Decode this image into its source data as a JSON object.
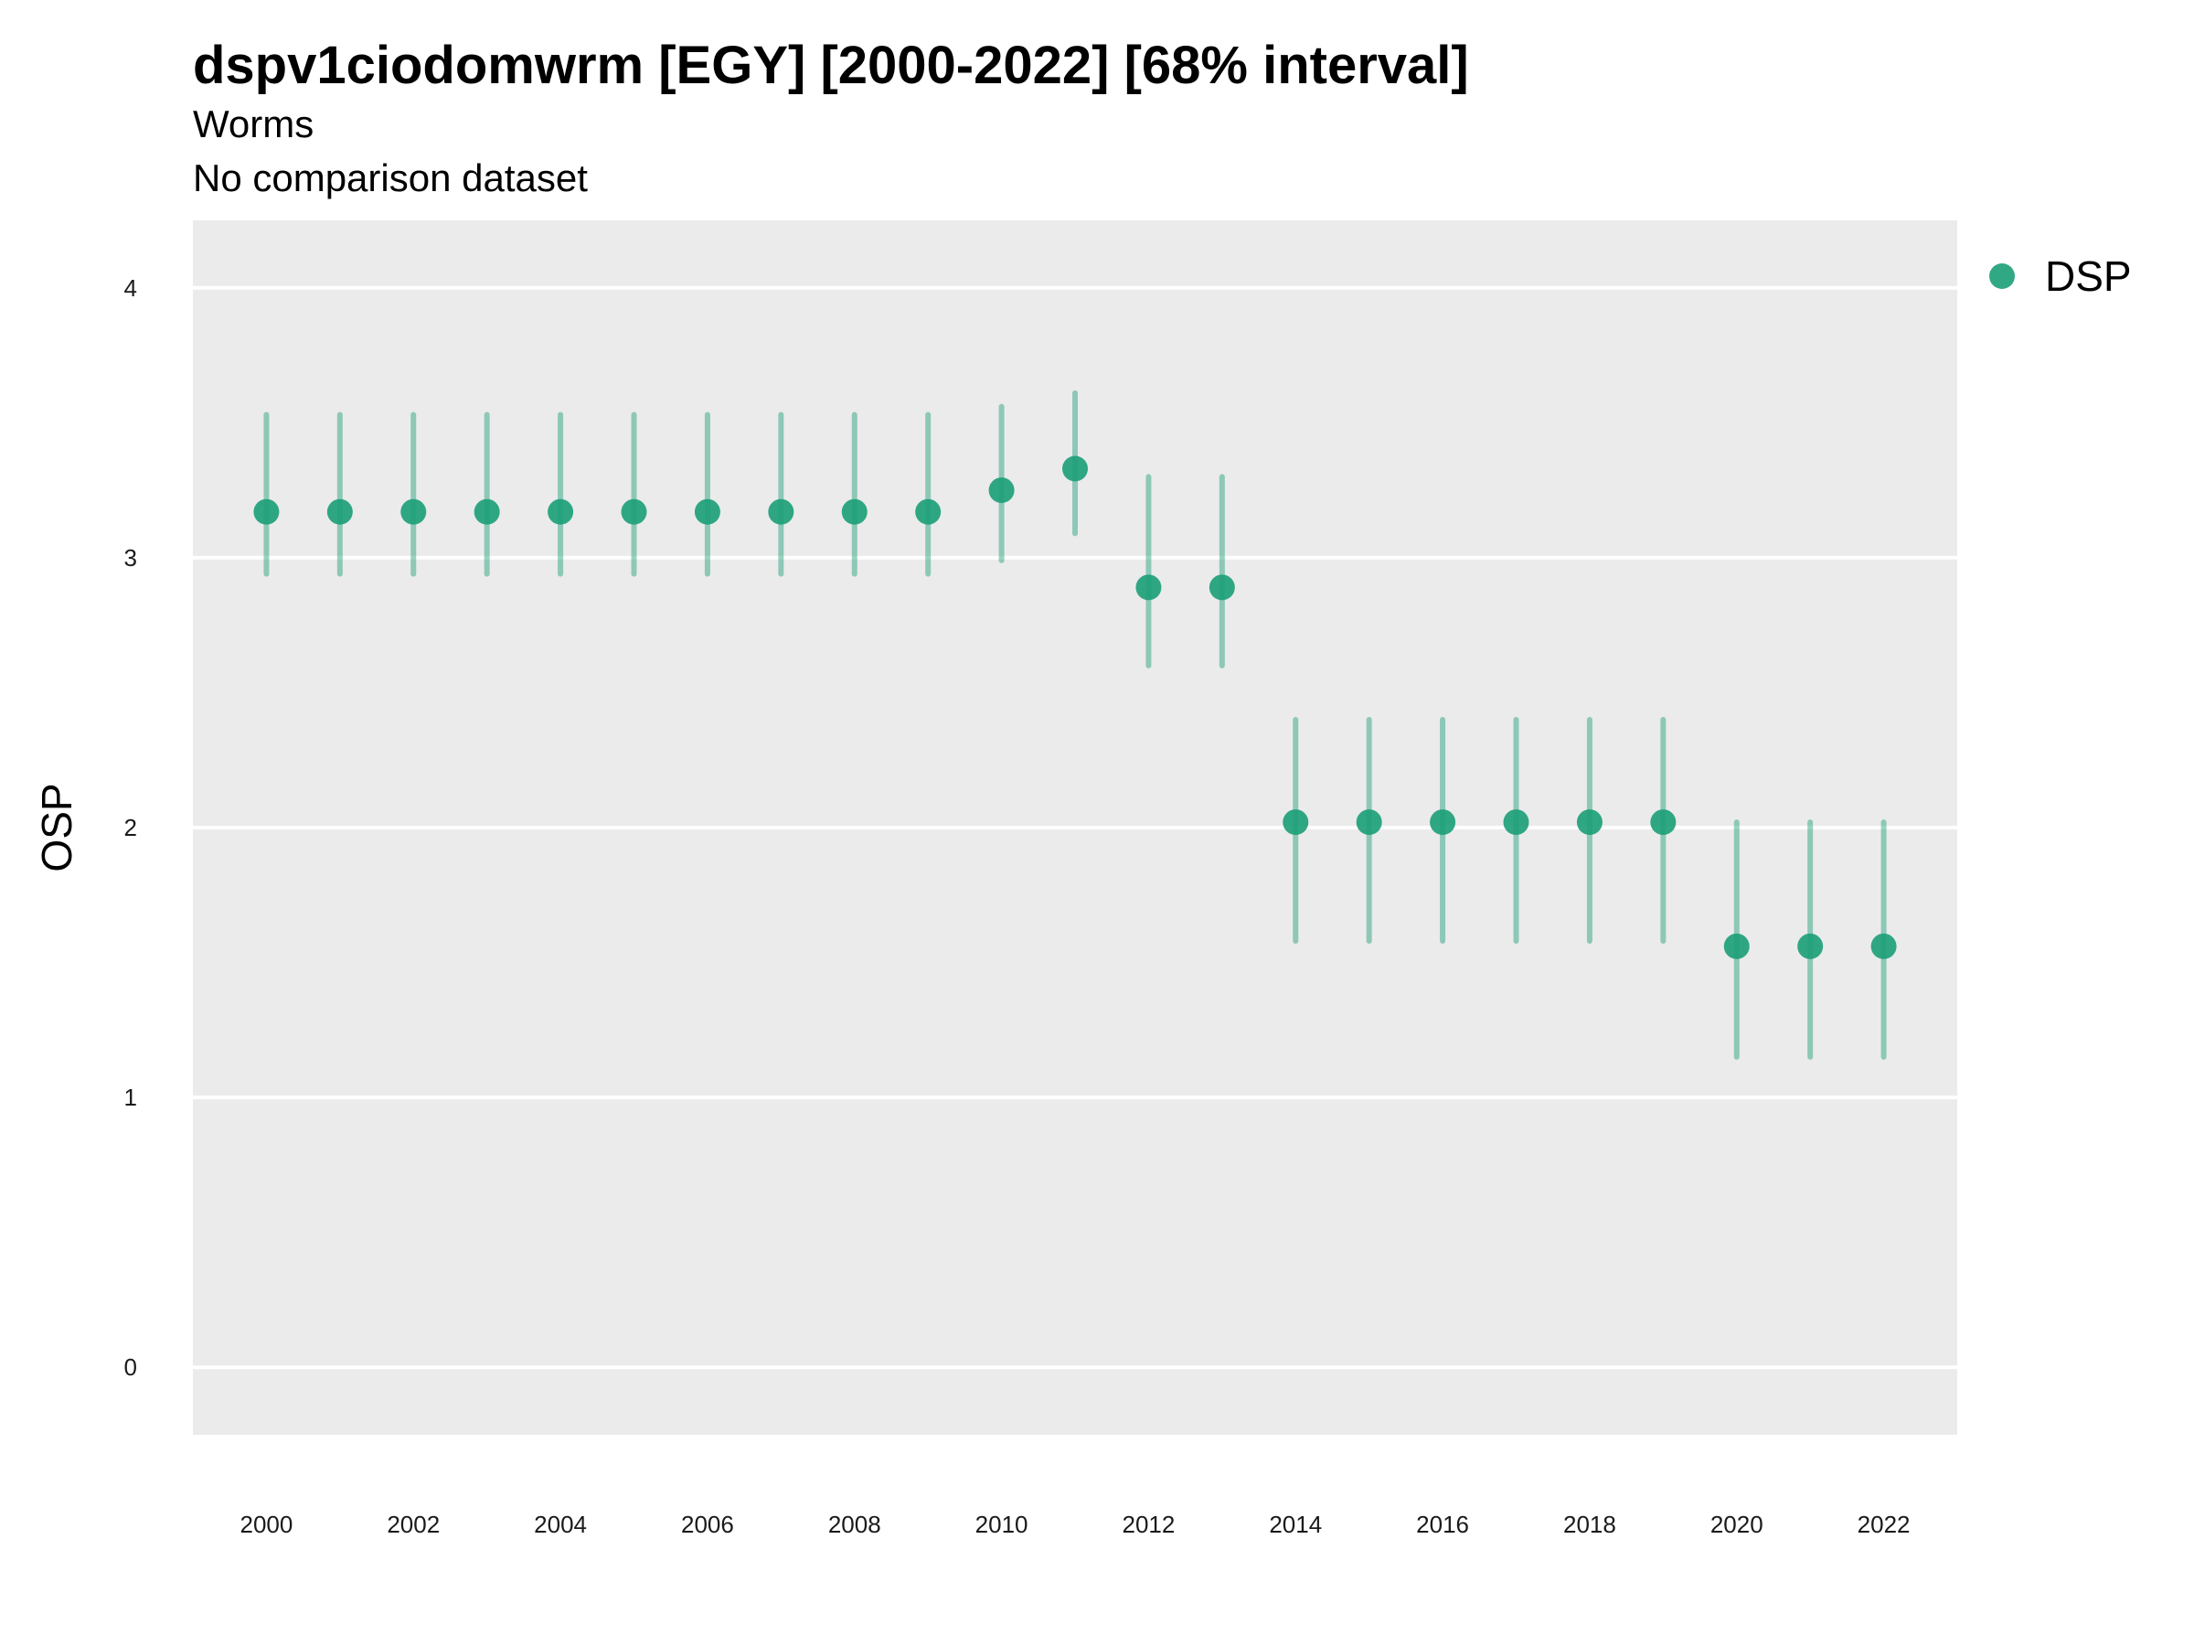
{
  "chart_data": {
    "type": "scatter",
    "title": "dspv1ciodomwrm [EGY] [2000-2022] [68% interval]",
    "subtitle": "Worms",
    "caption": "No comparison dataset",
    "xlabel": "",
    "ylabel": "OSP",
    "xlim": [
      1999,
      2023
    ],
    "ylim": [
      -0.25,
      4.25
    ],
    "yticks": [
      0,
      1,
      2,
      3,
      4
    ],
    "xticks": [
      2000,
      2002,
      2004,
      2006,
      2008,
      2010,
      2012,
      2014,
      2016,
      2018,
      2020,
      2022
    ],
    "grid": true,
    "legend_position": "right",
    "colors": {
      "point": "#1b9e77",
      "interval": "#1b9e77",
      "panel": "#ebebeb",
      "grid": "#ffffff"
    },
    "series": [
      {
        "name": "DSP",
        "x": [
          2000,
          2001,
          2002,
          2003,
          2004,
          2005,
          2006,
          2007,
          2008,
          2009,
          2010,
          2011,
          2012,
          2013,
          2014,
          2015,
          2016,
          2017,
          2018,
          2019,
          2020,
          2021,
          2022
        ],
        "y": [
          3.17,
          3.17,
          3.17,
          3.17,
          3.17,
          3.17,
          3.17,
          3.17,
          3.17,
          3.17,
          3.25,
          3.33,
          2.89,
          2.89,
          2.02,
          2.02,
          2.02,
          2.02,
          2.02,
          2.02,
          1.56,
          1.56,
          1.56
        ],
        "lower": [
          2.94,
          2.94,
          2.94,
          2.94,
          2.94,
          2.94,
          2.94,
          2.94,
          2.94,
          2.94,
          2.99,
          3.09,
          2.6,
          2.6,
          1.58,
          1.58,
          1.58,
          1.58,
          1.58,
          1.58,
          1.15,
          1.15,
          1.15
        ],
        "upper": [
          3.53,
          3.53,
          3.53,
          3.53,
          3.53,
          3.53,
          3.53,
          3.53,
          3.53,
          3.53,
          3.56,
          3.61,
          3.3,
          3.3,
          2.4,
          2.4,
          2.4,
          2.4,
          2.4,
          2.4,
          2.02,
          2.02,
          2.02
        ]
      }
    ]
  }
}
